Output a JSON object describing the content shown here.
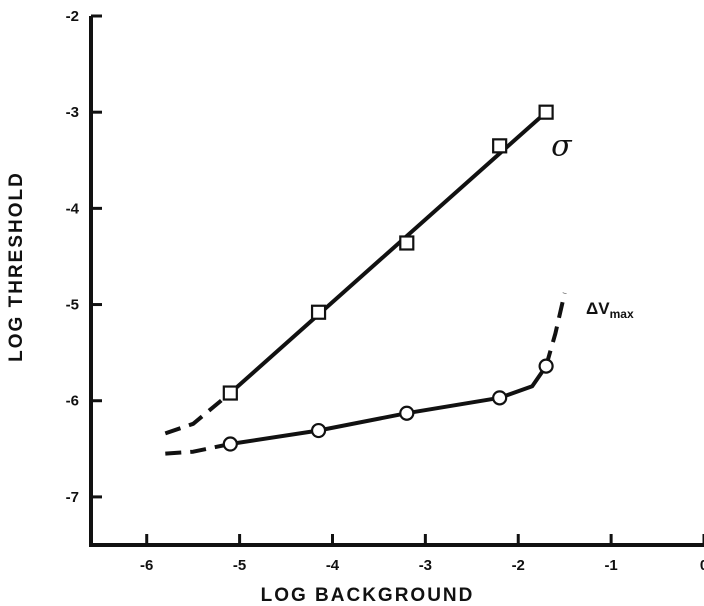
{
  "chart_data": {
    "type": "line",
    "title": "",
    "xlabel": "LOG BACKGROUND",
    "ylabel": "LOG THRESHOLD",
    "xlim": [
      -6.6,
      0
    ],
    "ylim": [
      -7.5,
      -2
    ],
    "x_ticks": [
      -6,
      -5,
      -4,
      -3,
      -2,
      -1,
      0
    ],
    "x_tick_labels": [
      "-6",
      "-5",
      "-4",
      "-3",
      "-2",
      "-1",
      "0"
    ],
    "y_ticks": [
      -2,
      -3,
      -4,
      -5,
      -6,
      -7
    ],
    "y_tick_labels": [
      "-2",
      "-3",
      "-4",
      "-5",
      "-6",
      "-7"
    ],
    "grid": false,
    "series": [
      {
        "name": "σ",
        "marker": "square",
        "x": [
          -5.1,
          -4.15,
          -3.2,
          -2.2,
          -1.7
        ],
        "y": [
          -5.92,
          -5.08,
          -4.36,
          -3.35,
          -3.0
        ],
        "fit_solid": [
          [
            -5.1,
            -5.92
          ],
          [
            -1.7,
            -3.0
          ]
        ],
        "fit_dashed": [
          [
            -5.8,
            -6.34
          ],
          [
            -5.5,
            -6.24
          ],
          [
            -5.1,
            -5.92
          ]
        ]
      },
      {
        "name": "ΔV",
        "name_subscript": "max",
        "marker": "circle",
        "x": [
          -5.1,
          -4.15,
          -3.2,
          -2.2,
          -1.7
        ],
        "y": [
          -6.45,
          -6.31,
          -6.13,
          -5.97,
          -5.64
        ],
        "fit_solid": [
          [
            -5.1,
            -6.45
          ],
          [
            -4.15,
            -6.31
          ],
          [
            -3.2,
            -6.13
          ],
          [
            -2.2,
            -5.97
          ],
          [
            -1.85,
            -5.85
          ],
          [
            -1.7,
            -5.64
          ]
        ],
        "fit_dashed_left": [
          [
            -5.8,
            -6.55
          ],
          [
            -5.5,
            -6.53
          ],
          [
            -5.1,
            -6.45
          ]
        ],
        "fit_dashed_right": [
          [
            -1.7,
            -5.64
          ],
          [
            -1.6,
            -5.3
          ],
          [
            -1.5,
            -4.88
          ]
        ]
      }
    ]
  }
}
